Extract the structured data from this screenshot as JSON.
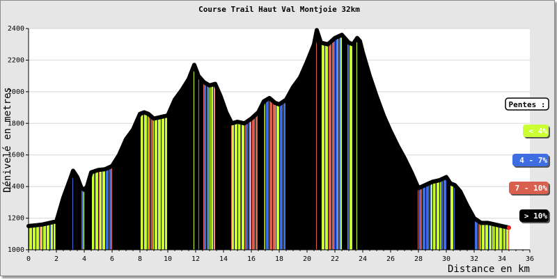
{
  "chart_data": {
    "type": "area",
    "title": "Course Trail Haut Val Montjoie 32km",
    "xlabel": "Distance en km",
    "ylabel": "Dénivelé en metres",
    "xlim": [
      0,
      36
    ],
    "ylim": [
      1000,
      2400
    ],
    "xticks": [
      "0",
      "2",
      "4",
      "6",
      "8",
      "10",
      "12",
      "14",
      "16",
      "18",
      "20",
      "22",
      "24",
      "26",
      "28",
      "30",
      "32",
      "34",
      "36"
    ],
    "yticks": [
      "1000",
      "1200",
      "1400",
      "1600",
      "1800",
      "2000",
      "2200",
      "2400"
    ],
    "grid": true,
    "legend_position": "right",
    "legend_title": "Pentes :",
    "legend": [
      {
        "label": "< 4%",
        "color": "#ccff33",
        "text_color": "#ffffff"
      },
      {
        "label": "4 - 7%",
        "color": "#3d6de0",
        "text_color": "#ffffff"
      },
      {
        "label": "7 - 10%",
        "color": "#d9604f",
        "text_color": "#ffffff"
      },
      {
        "label": "> 10%",
        "color": "#000000",
        "text_color": "#ffffff"
      }
    ],
    "series": [
      {
        "x": [
          0,
          0.5,
          1,
          1.5,
          2,
          2.5,
          3,
          3.2,
          3.5,
          3.8,
          4,
          4.2,
          4.5,
          5,
          5.5,
          6,
          6.5,
          7,
          7.5,
          8,
          8.3,
          8.6,
          9,
          9.5,
          10,
          10.5,
          11,
          11.5,
          11.9,
          12.2,
          12.6,
          13,
          13.4,
          13.8,
          14.2,
          14.6,
          15,
          15.5,
          16,
          16.5,
          16.9,
          17.3,
          17.7,
          18,
          18.5,
          19,
          19.5,
          20,
          20.5,
          20.7,
          21,
          21.5,
          22,
          22.5,
          23,
          23.3,
          23.6,
          23.8,
          24,
          24.5,
          25,
          25.5,
          26,
          26.5,
          27,
          27.5,
          28,
          28.5,
          29,
          29.5,
          30,
          30.3,
          30.6,
          31,
          31.5,
          32,
          32.5,
          33,
          33.5,
          34,
          34.5
        ],
        "y": [
          1150,
          1155,
          1160,
          1170,
          1180,
          1330,
          1450,
          1500,
          1460,
          1390,
          1380,
          1400,
          1490,
          1505,
          1510,
          1530,
          1600,
          1700,
          1760,
          1860,
          1870,
          1860,
          1830,
          1840,
          1850,
          1950,
          2010,
          2080,
          2170,
          2100,
          2060,
          2040,
          2050,
          1970,
          1870,
          1800,
          1810,
          1800,
          1830,
          1870,
          1940,
          1960,
          1930,
          1920,
          1950,
          2030,
          2090,
          2190,
          2300,
          2390,
          2310,
          2300,
          2340,
          2360,
          2310,
          2300,
          2340,
          2320,
          2250,
          2100,
          1970,
          1850,
          1750,
          1660,
          1580,
          1490,
          1390,
          1410,
          1430,
          1440,
          1460,
          1420,
          1410,
          1370,
          1280,
          1200,
          1170,
          1170,
          1160,
          1150,
          1140
        ]
      }
    ]
  }
}
